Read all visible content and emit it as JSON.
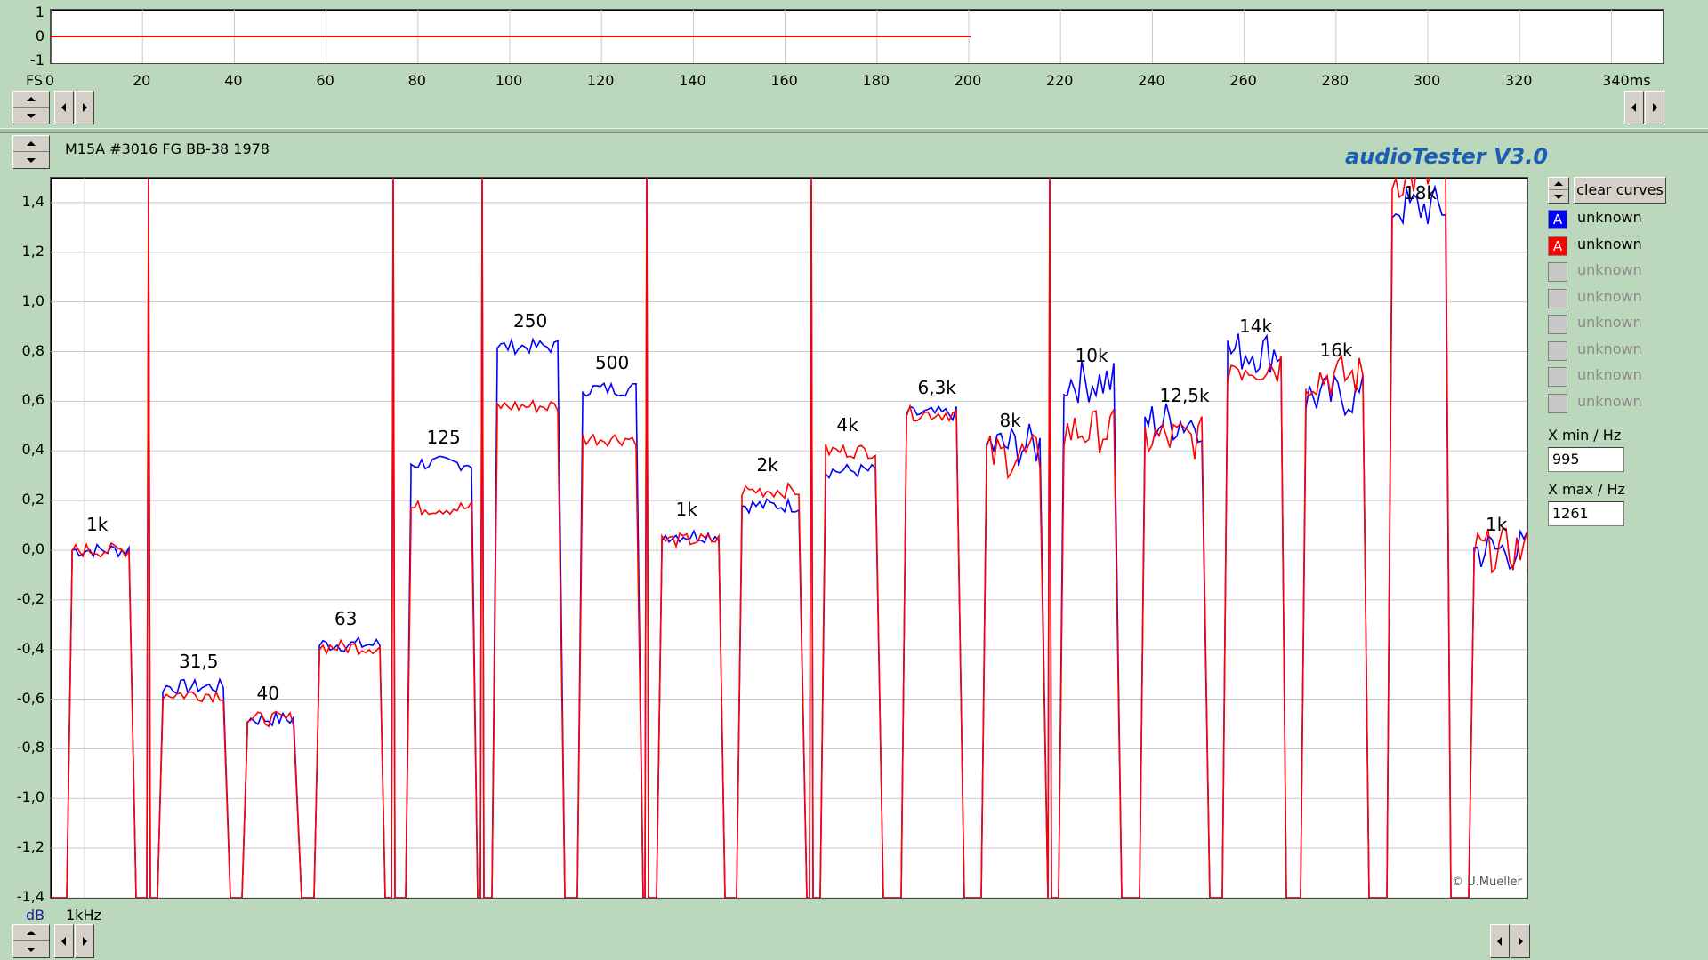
{
  "app": {
    "title": "audioTester  V3.0",
    "copyright": "© U.Mueller"
  },
  "top_scope": {
    "yticks": [
      "1",
      "0",
      "-1"
    ],
    "fs_label": "FS",
    "xticks": [
      "0",
      "20",
      "40",
      "60",
      "80",
      "100",
      "120",
      "140",
      "160",
      "180",
      "200",
      "220",
      "240",
      "260",
      "280",
      "300",
      "320",
      "340ms"
    ]
  },
  "main": {
    "measurement_title": "M15A #3016 FG BB-38 1978",
    "yticks": [
      "1,4",
      "1,2",
      "1,0",
      "0,8",
      "0,6",
      "0,4",
      "0,2",
      "0,0",
      "-0,2",
      "-0,4",
      "-0,6",
      "-0,8",
      "-1,0",
      "-1,2",
      "-1,4"
    ],
    "unit_label": "dB",
    "xaxis_label": "1kHz",
    "peak_labels": [
      "1k",
      "31,5",
      "40",
      "63",
      "125",
      "250",
      "500",
      "1k",
      "2k",
      "4k",
      "6,3k",
      "8k",
      "10k",
      "12,5k",
      "14k",
      "16k",
      "18k",
      "1k"
    ]
  },
  "side_panel": {
    "clear_button": "clear curves",
    "curves": [
      {
        "marker": "A",
        "label": "unknown",
        "color": "#0000ff",
        "active": true
      },
      {
        "marker": "A",
        "label": "unknown",
        "color": "#ff0000",
        "active": true
      },
      {
        "marker": "",
        "label": "unknown",
        "color": "#c0c0c0",
        "active": false
      },
      {
        "marker": "",
        "label": "unknown",
        "color": "#c0c0c0",
        "active": false
      },
      {
        "marker": "",
        "label": "unknown",
        "color": "#c0c0c0",
        "active": false
      },
      {
        "marker": "",
        "label": "unknown",
        "color": "#c0c0c0",
        "active": false
      },
      {
        "marker": "",
        "label": "unknown",
        "color": "#c0c0c0",
        "active": false
      },
      {
        "marker": "",
        "label": "unknown",
        "color": "#c0c0c0",
        "active": false
      }
    ],
    "xmin_label": "X min / Hz",
    "xmin_value": "995",
    "xmax_label": "X max / Hz",
    "xmax_value": "1261"
  },
  "chart_data": {
    "type": "line",
    "ylabel": "dB",
    "ylim": [
      -1.4,
      1.5
    ],
    "series": [
      {
        "name": "unknown",
        "color": "#0000ff",
        "segments": [
          {
            "label": "1k",
            "level": 0.0
          },
          {
            "label": "31,5",
            "level": -0.55
          },
          {
            "label": "40",
            "level": -0.68
          },
          {
            "label": "63",
            "level": -0.38
          },
          {
            "label": "125",
            "level": 0.35
          },
          {
            "label": "250",
            "level": 0.82
          },
          {
            "label": "500",
            "level": 0.65
          },
          {
            "label": "1k",
            "level": 0.06
          },
          {
            "label": "2k",
            "level": 0.18
          },
          {
            "label": "4k",
            "level": 0.32
          },
          {
            "label": "6,3k",
            "level": 0.55
          },
          {
            "label": "8k",
            "level": 0.42
          },
          {
            "label": "10k",
            "level": 0.68
          },
          {
            "label": "12,5k",
            "level": 0.52
          },
          {
            "label": "14k",
            "level": 0.8
          },
          {
            "label": "16k",
            "level": 0.62
          },
          {
            "label": "18k",
            "level": 1.38
          },
          {
            "label": "1k",
            "level": 0.0
          }
        ]
      },
      {
        "name": "unknown",
        "color": "#ff0000",
        "segments": [
          {
            "label": "1k",
            "level": 0.0
          },
          {
            "label": "31,5",
            "level": -0.58
          },
          {
            "label": "40",
            "level": -0.68
          },
          {
            "label": "63",
            "level": -0.39
          },
          {
            "label": "125",
            "level": 0.17
          },
          {
            "label": "250",
            "level": 0.58
          },
          {
            "label": "500",
            "level": 0.45
          },
          {
            "label": "1k",
            "level": 0.04
          },
          {
            "label": "2k",
            "level": 0.24
          },
          {
            "label": "4k",
            "level": 0.4
          },
          {
            "label": "6,3k",
            "level": 0.55
          },
          {
            "label": "8k",
            "level": 0.38
          },
          {
            "label": "10k",
            "level": 0.48
          },
          {
            "label": "12,5k",
            "level": 0.45
          },
          {
            "label": "14k",
            "level": 0.75
          },
          {
            "label": "16k",
            "level": 0.7
          },
          {
            "label": "18k",
            "level": 1.5
          },
          {
            "label": "1k",
            "level": 0.0
          }
        ]
      }
    ]
  }
}
